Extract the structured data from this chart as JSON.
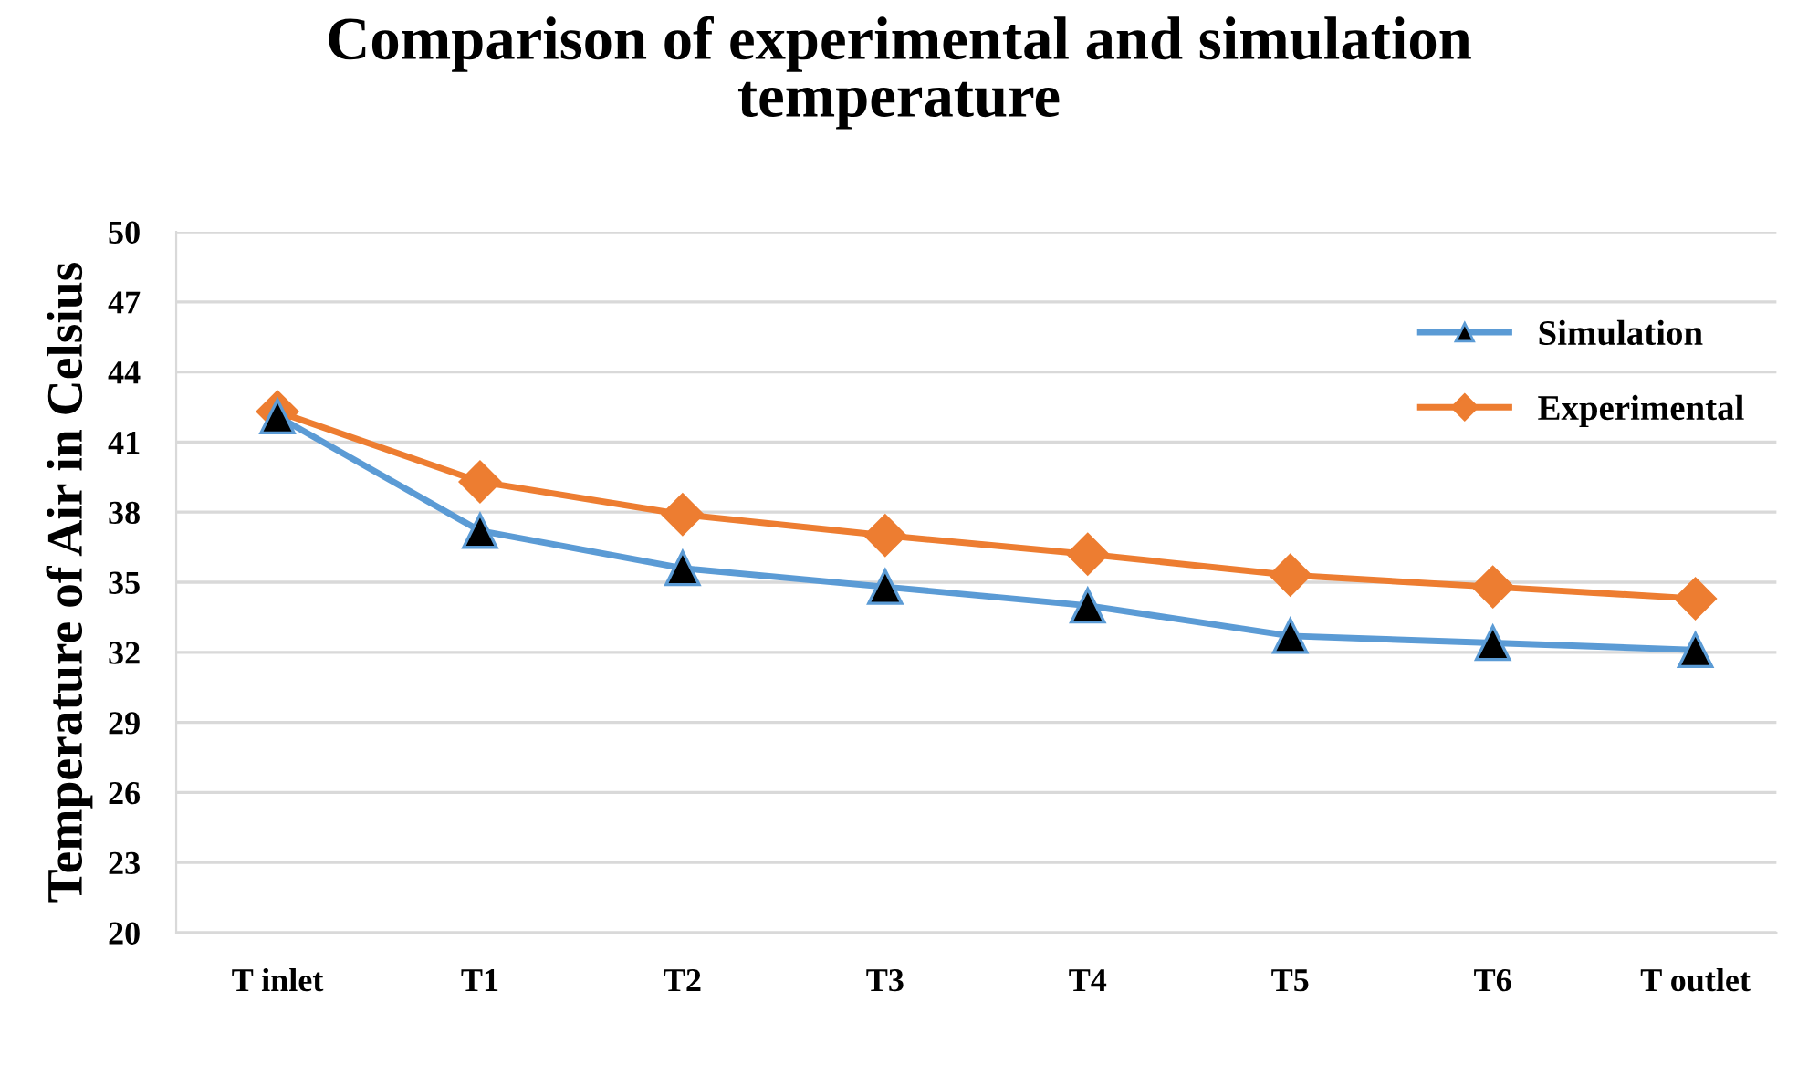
{
  "chart_data": {
    "type": "line",
    "title": "Comparison of experimental and simulation\ntemperature",
    "ylabel": "Temperature of Air in Celsius",
    "categories": [
      "T inlet",
      "T1",
      "T2",
      "T3",
      "T4",
      "T5",
      "T6",
      "T outlet"
    ],
    "series": [
      {
        "name": "Simulation",
        "color": "#5b9bd5",
        "marker": "triangle",
        "values": [
          42.1,
          37.2,
          35.6,
          34.8,
          34.0,
          32.7,
          32.4,
          32.1
        ]
      },
      {
        "name": "Experimental",
        "color": "#ed7d31",
        "marker": "diamond",
        "values": [
          42.3,
          39.3,
          37.9,
          37.0,
          36.2,
          35.3,
          34.8,
          34.3
        ]
      }
    ],
    "ylim": [
      20,
      50
    ],
    "yticks": [
      20,
      23,
      26,
      29,
      32,
      35,
      38,
      41,
      44,
      47,
      50
    ],
    "grid": "y",
    "legend": "top right"
  }
}
